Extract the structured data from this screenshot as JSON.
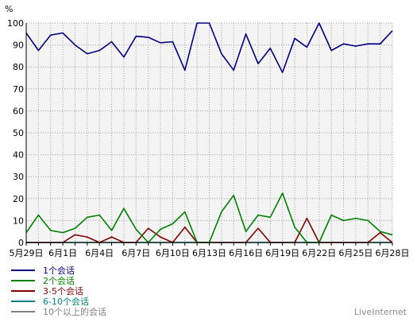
{
  "chart_data": {
    "type": "line",
    "ylabel": "%",
    "ylim": [
      0,
      100
    ],
    "yticks": [
      0,
      10,
      20,
      30,
      40,
      50,
      60,
      70,
      80,
      90,
      100
    ],
    "x": [
      "5月29日",
      "5月30日",
      "5月31日",
      "6月1日",
      "6月2日",
      "6月3日",
      "6月4日",
      "6月5日",
      "6月6日",
      "6月7日",
      "6月8日",
      "6月9日",
      "6月10日",
      "6月11日",
      "6月12日",
      "6月13日",
      "6月14日",
      "6月15日",
      "6月16日",
      "6月17日",
      "6月18日",
      "6月19日",
      "6月20日",
      "6月21日",
      "6月22日",
      "6月23日",
      "6月24日",
      "6月25日",
      "6月26日",
      "6月27日",
      "6月28日"
    ],
    "xtick_labels": [
      "5月29日",
      "6月1日",
      "6月4日",
      "6月7日",
      "6月10日",
      "6月13日",
      "6月16日",
      "6月19日",
      "6月22日",
      "6月25日",
      "6月28日"
    ],
    "grid": true,
    "legend_position": "bottom-left",
    "series": [
      {
        "name": "1个会话",
        "color": "#000080",
        "values": [
          95.5,
          87.5,
          94.5,
          95.5,
          90,
          86,
          87.5,
          91.5,
          84.5,
          94,
          93.5,
          91,
          91.5,
          78.5,
          100,
          100,
          86,
          78.5,
          95,
          81.5,
          88.5,
          77.5,
          93,
          89,
          100,
          87.5,
          90.5,
          89.5,
          90.5,
          90.5,
          96.5
        ]
      },
      {
        "name": "2个会话",
        "color": "#008000",
        "values": [
          4.5,
          12.5,
          5.5,
          4.5,
          6.5,
          11.5,
          12.5,
          5.5,
          15.5,
          6,
          0,
          6,
          8.5,
          14,
          0,
          0,
          14,
          21.5,
          5,
          12.5,
          11.5,
          22.5,
          7,
          0,
          0,
          12.5,
          10,
          11,
          10,
          5,
          3.5
        ]
      },
      {
        "name": "3-5个会话",
        "color": "#800000",
        "values": [
          0,
          0,
          0,
          0,
          3.5,
          2.5,
          0,
          2.5,
          0,
          0,
          6.5,
          2.5,
          0,
          7,
          0,
          0,
          0,
          0,
          0,
          6.5,
          0,
          0,
          0,
          11,
          0,
          0,
          0,
          0,
          0,
          4.5,
          0
        ]
      },
      {
        "name": "6-10个会话",
        "color": "#008080",
        "values": [
          0,
          0,
          0,
          0,
          0,
          0,
          0,
          0,
          0,
          0,
          0,
          0,
          0,
          0,
          0,
          0,
          0,
          0,
          0,
          0,
          0,
          0,
          0,
          0,
          0,
          0,
          0,
          0,
          0,
          0,
          0
        ]
      },
      {
        "name": "10个以上的会话",
        "color": "#808080",
        "values": [
          0,
          0,
          0,
          0,
          0,
          0,
          0,
          0,
          0,
          0,
          0,
          0,
          0,
          0,
          0,
          0,
          0,
          0,
          0,
          0,
          0,
          0,
          0,
          0,
          0,
          0,
          0,
          0,
          0,
          0,
          0
        ]
      }
    ]
  },
  "brand": "LiveInternet"
}
